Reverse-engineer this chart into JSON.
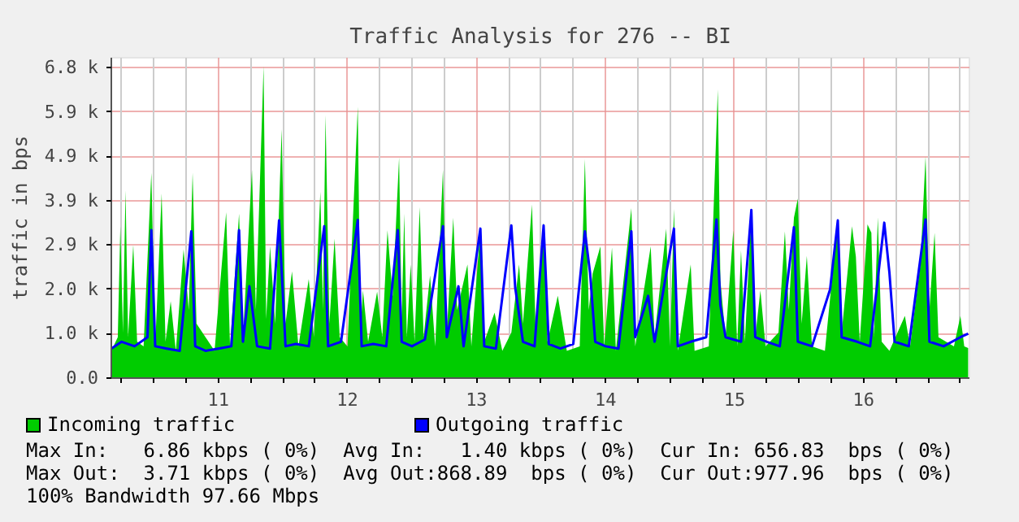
{
  "chart_data": {
    "type": "area",
    "title": "Traffic Analysis for 276 -- BI",
    "ylabel": "traffic in bps",
    "xlim": [
      10.17,
      16.82
    ],
    "ylim": [
      0,
      7050
    ],
    "xticks": [
      {
        "value": 10.25,
        "label": null
      },
      {
        "value": 10.5,
        "label": null
      },
      {
        "value": 10.75,
        "label": null
      },
      11,
      {
        "value": 11.25,
        "label": null
      },
      {
        "value": 11.5,
        "label": null
      },
      {
        "value": 11.75,
        "label": null
      },
      12,
      {
        "value": 12.25,
        "label": null
      },
      {
        "value": 12.5,
        "label": null
      },
      {
        "value": 12.75,
        "label": null
      },
      13,
      {
        "value": 13.25,
        "label": null
      },
      {
        "value": 13.5,
        "label": null
      },
      {
        "value": 13.75,
        "label": null
      },
      14,
      {
        "value": 14.25,
        "label": null
      },
      {
        "value": 14.5,
        "label": null
      },
      {
        "value": 14.75,
        "label": null
      },
      15,
      {
        "value": 15.25,
        "label": null
      },
      {
        "value": 15.5,
        "label": null
      },
      {
        "value": 15.75,
        "label": null
      },
      16,
      {
        "value": 16.25,
        "label": null
      },
      {
        "value": 16.5,
        "label": null
      },
      {
        "value": 16.75,
        "label": null
      }
    ],
    "yticks": [
      {
        "value": 0,
        "label": "0.0"
      },
      {
        "value": 976.56,
        "label": "1.0 k"
      },
      {
        "value": 1953.12,
        "label": "2.0 k"
      },
      {
        "value": 2929.69,
        "label": "2.9 k"
      },
      {
        "value": 3906.25,
        "label": "3.9 k"
      },
      {
        "value": 4882.81,
        "label": "4.9 k"
      },
      {
        "value": 5859.38,
        "label": "5.9 k"
      },
      {
        "value": 6835.94,
        "label": "6.8 k"
      }
    ],
    "grid": true,
    "legend": "bottom",
    "series": [
      {
        "name": "Incoming traffic",
        "color": "#00cc00",
        "x": [
          10.17,
          10.22,
          10.24,
          10.26,
          10.28,
          10.3,
          10.34,
          10.37,
          10.42,
          10.48,
          10.51,
          10.56,
          10.59,
          10.63,
          10.67,
          10.73,
          10.77,
          10.8,
          10.83,
          10.9,
          10.97,
          11.06,
          11.09,
          11.16,
          11.19,
          11.26,
          11.29,
          11.35,
          11.37,
          11.4,
          11.44,
          11.49,
          11.52,
          11.57,
          11.62,
          11.7,
          11.74,
          11.79,
          11.81,
          11.83,
          11.86,
          11.9,
          11.94,
          12.0,
          12.08,
          12.1,
          12.12,
          12.16,
          12.23,
          12.27,
          12.31,
          12.35,
          12.4,
          12.42,
          12.44,
          12.46,
          12.49,
          12.52,
          12.56,
          12.59,
          12.64,
          12.68,
          12.74,
          12.77,
          12.82,
          12.85,
          12.93,
          12.96,
          13.03,
          13.06,
          13.14,
          13.2,
          13.27,
          13.33,
          13.36,
          13.43,
          13.46,
          13.52,
          13.55,
          13.63,
          13.7,
          13.8,
          13.84,
          13.87,
          13.9,
          13.96,
          13.99,
          14.05,
          14.08,
          14.2,
          14.23,
          14.35,
          14.38,
          14.47,
          14.5,
          14.53,
          14.56,
          14.66,
          14.69,
          14.8,
          14.87,
          14.89,
          14.93,
          14.99,
          15.02,
          15.05,
          15.08,
          15.13,
          15.16,
          15.2,
          15.24,
          15.34,
          15.39,
          15.42,
          15.46,
          15.49,
          15.52,
          15.56,
          15.6,
          15.7,
          15.8,
          15.83,
          15.91,
          15.94,
          15.97,
          16.03,
          16.06,
          16.08,
          16.11,
          16.14,
          16.2,
          16.32,
          16.36,
          16.44,
          16.48,
          16.51,
          16.55,
          16.58,
          16.7,
          16.75,
          16.78,
          16.81
        ],
        "values": [
          600,
          900,
          3340,
          1000,
          4130,
          900,
          2930,
          800,
          700,
          4520,
          700,
          4060,
          800,
          1690,
          600,
          2830,
          1500,
          4520,
          1200,
          900,
          600,
          3650,
          700,
          3620,
          900,
          4580,
          1500,
          6860,
          1300,
          2900,
          1200,
          5480,
          1200,
          2350,
          700,
          2180,
          900,
          4100,
          1500,
          5790,
          1200,
          3070,
          900,
          700,
          5970,
          1000,
          1930,
          800,
          1900,
          900,
          3250,
          1800,
          4860,
          1300,
          3620,
          900,
          2500,
          800,
          3760,
          900,
          2260,
          700,
          4580,
          1000,
          3530,
          1500,
          2500,
          700,
          3290,
          800,
          1440,
          600,
          1000,
          2500,
          1200,
          3820,
          900,
          3430,
          800,
          1810,
          600,
          700,
          4820,
          1500,
          2300,
          2900,
          700,
          2870,
          600,
          3740,
          700,
          2900,
          900,
          3290,
          700,
          3720,
          600,
          2500,
          600,
          700,
          6350,
          2150,
          900,
          3250,
          700,
          2810,
          800,
          3640,
          900,
          1930,
          700,
          1000,
          3230,
          1500,
          3530,
          3950,
          1200,
          2690,
          700,
          600,
          3470,
          1000,
          3340,
          2670,
          800,
          3380,
          3200,
          900,
          3540,
          800,
          600,
          1370,
          700,
          2500,
          4880,
          1500,
          3200,
          900,
          700,
          1370,
          700,
          660
        ]
      },
      {
        "name": "Outgoing traffic",
        "type": "line",
        "color": "#0000ff",
        "x": [
          10.17,
          10.25,
          10.35,
          10.45,
          10.48,
          10.51,
          10.6,
          10.7,
          10.79,
          10.82,
          10.9,
          11.0,
          11.1,
          11.16,
          11.19,
          11.24,
          11.3,
          11.4,
          11.47,
          11.52,
          11.6,
          11.7,
          11.82,
          11.85,
          11.95,
          12.08,
          12.11,
          12.2,
          12.3,
          12.39,
          12.42,
          12.5,
          12.6,
          12.74,
          12.77,
          12.86,
          12.9,
          13.03,
          13.06,
          13.15,
          13.27,
          13.3,
          13.36,
          13.45,
          13.52,
          13.56,
          13.65,
          13.75,
          13.84,
          13.88,
          13.92,
          14.0,
          14.1,
          14.2,
          14.23,
          14.33,
          14.38,
          14.53,
          14.56,
          14.66,
          14.78,
          14.86,
          14.89,
          14.93,
          15.05,
          15.13,
          15.16,
          15.25,
          15.35,
          15.46,
          15.49,
          15.6,
          15.74,
          15.8,
          15.83,
          15.95,
          16.05,
          16.16,
          16.2,
          16.24,
          16.35,
          16.48,
          16.51,
          16.62,
          16.75,
          16.81
        ],
        "values": [
          650,
          800,
          700,
          900,
          3255,
          700,
          650,
          600,
          3230,
          700,
          600,
          650,
          700,
          3255,
          800,
          2020,
          700,
          650,
          3470,
          700,
          750,
          700,
          3340,
          700,
          800,
          3480,
          700,
          750,
          700,
          3255,
          800,
          700,
          850,
          3340,
          900,
          2020,
          700,
          3290,
          700,
          650,
          3360,
          1990,
          800,
          700,
          3360,
          750,
          650,
          750,
          3230,
          2320,
          800,
          700,
          650,
          3230,
          900,
          1810,
          800,
          3290,
          700,
          800,
          900,
          3490,
          1600,
          900,
          800,
          3700,
          900,
          800,
          700,
          3320,
          800,
          700,
          1950,
          3470,
          900,
          800,
          700,
          3420,
          2320,
          800,
          700,
          3490,
          800,
          700,
          900,
          978
        ]
      }
    ],
    "annotations": [
      "Max In:   6.86 kbps ( 0%)  Avg In:   1.40 kbps ( 0%)  Cur In: 656.83  bps ( 0%)",
      "Max Out:  3.71 kbps ( 0%)  Avg Out:868.89  bps ( 0%)  Cur Out:977.96  bps ( 0%)",
      "100% Bandwidth 97.66 Mbps"
    ]
  }
}
